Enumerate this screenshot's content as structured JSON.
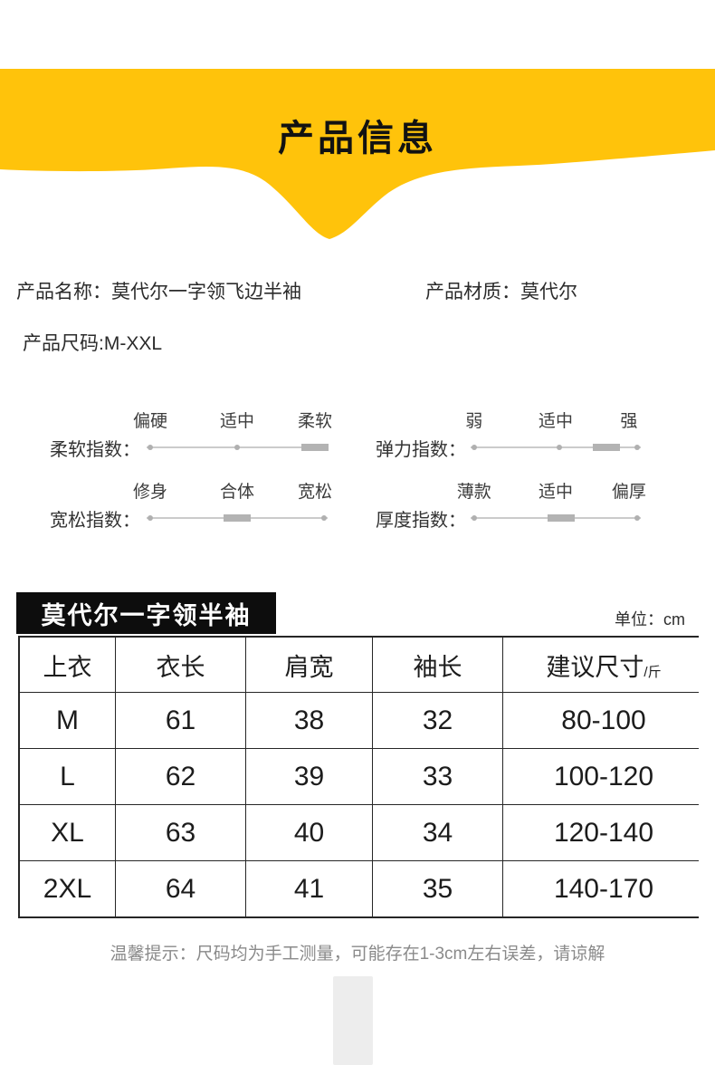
{
  "banner": {
    "title": "产品信息",
    "bg_color": "#FFC30B"
  },
  "product_info": {
    "name_label": "产品名称：",
    "name_value": "莫代尔一字领飞边半袖",
    "material_label": "产品材质：",
    "material_value": "莫代尔",
    "size_label": "产品尺码:",
    "size_value": "M-XXL"
  },
  "indices": [
    {
      "label": "柔软指数：",
      "ticks": [
        "偏硬",
        "适中",
        "柔软"
      ],
      "dots": [
        0.02,
        0.5
      ],
      "indicator": 0.93
    },
    {
      "label": "弹力指数：",
      "ticks": [
        "弱",
        "适中",
        "强"
      ],
      "dots": [
        0.02,
        0.52,
        0.98
      ],
      "indicator": 0.8
    },
    {
      "label": "宽松指数：",
      "ticks": [
        "修身",
        "合体",
        "宽松"
      ],
      "dots": [
        0.02,
        0.98
      ],
      "indicator": 0.5
    },
    {
      "label": "厚度指数：",
      "ticks": [
        "薄款",
        "适中",
        "偏厚"
      ],
      "dots": [
        0.02,
        0.98
      ],
      "indicator": 0.53
    }
  ],
  "size_chart": {
    "heading": "莫代尔一字领半袖",
    "unit_note": "单位：cm",
    "columns": [
      "上衣",
      "衣长",
      "肩宽",
      "袖长",
      "建议尺寸"
    ],
    "last_column_unit": "/斤",
    "rows": [
      [
        "M",
        "61",
        "38",
        "32",
        "80-100"
      ],
      [
        "L",
        "62",
        "39",
        "33",
        "100-120"
      ],
      [
        "XL",
        "63",
        "40",
        "34",
        "120-140"
      ],
      [
        "2XL",
        "64",
        "41",
        "35",
        "140-170"
      ]
    ]
  },
  "footnote": "温馨提示：尺码均为手工测量，可能存在1-3cm左右误差，请谅解"
}
